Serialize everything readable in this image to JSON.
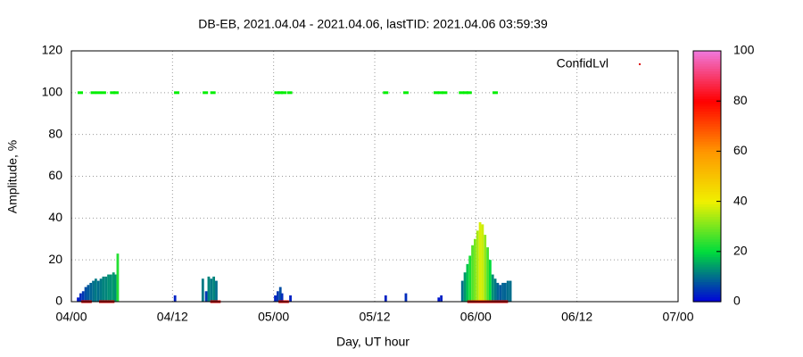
{
  "chart_data": {
    "type": "bar",
    "title": "DB-EB, 2021.04.04 - 2021.04.06, lastTID: 2021.04.06 03:59:39",
    "x_label": "Day, UT hour",
    "y_label": "Amplitude, %",
    "x": [
      0.8,
      1.1,
      1.4,
      1.7,
      2.0,
      2.3,
      2.6,
      2.9,
      3.2,
      3.5,
      3.8,
      4.1,
      4.4,
      4.7,
      5.0,
      5.2,
      5.5,
      12.3,
      15.6,
      16.0,
      16.3,
      16.6,
      16.9,
      17.2,
      24.2,
      24.5,
      24.8,
      25.0,
      26.0,
      37.3,
      39.7,
      43.6,
      43.9,
      46.4,
      46.7,
      47.0,
      47.3,
      47.6,
      47.9,
      48.2,
      48.5,
      48.8,
      49.1,
      49.4,
      49.7,
      50.0,
      50.3,
      50.6,
      50.9,
      51.2,
      51.5,
      51.8,
      52.1
    ],
    "values": [
      2,
      4,
      5,
      7,
      8,
      9,
      10,
      11,
      10,
      11,
      12,
      12,
      13,
      13,
      14,
      13,
      23,
      3,
      11,
      5,
      12,
      11,
      12,
      10,
      3,
      5,
      7,
      4,
      3,
      3,
      4,
      2,
      3,
      10,
      14,
      18,
      22,
      27,
      30,
      34,
      38,
      37,
      32,
      26,
      20,
      13,
      11,
      9,
      8,
      9,
      9,
      10,
      10
    ],
    "series": [
      {
        "name": "ConfidLvl",
        "color": "#dd0000",
        "x": [
          1.5,
          2.1,
          3.6,
          4.2,
          4.8,
          16.8,
          17.4,
          24.9,
          25.5,
          47.3,
          47.9,
          48.5,
          49.1,
          49.7,
          50.3,
          50.9,
          51.5
        ],
        "values": [
          0,
          0,
          0,
          0,
          0,
          0,
          0,
          0,
          0,
          0,
          0,
          0,
          0,
          0,
          0,
          0,
          0
        ]
      },
      {
        "color": "#00ee00",
        "x": [
          1.06,
          2.6,
          3.2,
          3.8,
          4.9,
          5.3,
          12.5,
          15.9,
          16.8,
          24.4,
          24.8,
          25.2,
          25.9,
          37.3,
          39.7,
          43.3,
          43.8,
          44.3,
          46.3,
          46.8,
          47.2,
          50.3
        ],
        "values": [
          100,
          100,
          100,
          100,
          100,
          100,
          100,
          100,
          100,
          100,
          100,
          100,
          100,
          100,
          100,
          100,
          100,
          100,
          100,
          100,
          100,
          100
        ]
      }
    ],
    "xlim": [
      0,
      72
    ],
    "xticks": [
      {
        "value": 0,
        "label": "04/00"
      },
      {
        "value": 12,
        "label": "04/12"
      },
      {
        "value": 24,
        "label": "05/00"
      },
      {
        "value": 36,
        "label": "05/12"
      },
      {
        "value": 48,
        "label": "06/00"
      },
      {
        "value": 60,
        "label": "06/12"
      },
      {
        "value": 72,
        "label": "07/00"
      }
    ],
    "ylim": [
      0,
      120
    ],
    "yticks": [
      0,
      20,
      40,
      60,
      80,
      100,
      120
    ],
    "cblim": [
      0,
      100
    ],
    "cbticks": [
      0,
      20,
      40,
      60,
      80,
      100
    ],
    "grid": true,
    "legend": "top-right"
  }
}
